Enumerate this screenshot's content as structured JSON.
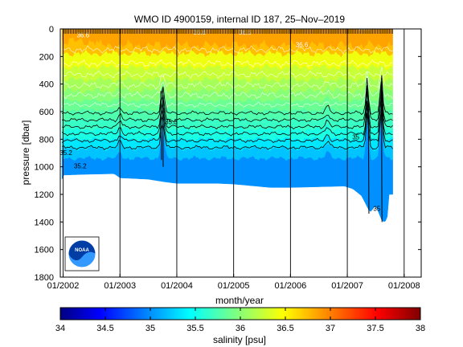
{
  "chart_data": {
    "type": "heatmap",
    "title": "WMO ID 4900159, internal ID 187, 25–Nov–2019",
    "xlabel": "month/year",
    "ylabel": "pressure [dbar]",
    "colorbar_label": "salinity [psu]",
    "xlim": [
      2001.95,
      2008.3
    ],
    "ylim": [
      0,
      1800
    ],
    "y_reversed": true,
    "x_ticks": [
      {
        "value": 2002,
        "label": "01/2002"
      },
      {
        "value": 2003,
        "label": "01/2003"
      },
      {
        "value": 2004,
        "label": "01/2004"
      },
      {
        "value": 2005,
        "label": "01/2005"
      },
      {
        "value": 2006,
        "label": "01/2006"
      },
      {
        "value": 2007,
        "label": "01/2007"
      },
      {
        "value": 2008,
        "label": "01/2008"
      }
    ],
    "y_ticks": [
      0,
      200,
      400,
      600,
      800,
      1000,
      1200,
      1400,
      1600,
      1800
    ],
    "grid": "vertical lines at each year",
    "colorbar": {
      "range": [
        34,
        38
      ],
      "ticks": [
        {
          "value": 34,
          "label": "34"
        },
        {
          "value": 34.5,
          "label": "34.5"
        },
        {
          "value": 35,
          "label": "35"
        },
        {
          "value": 35.5,
          "label": "35.5"
        },
        {
          "value": 36,
          "label": "36"
        },
        {
          "value": 36.5,
          "label": "36.5"
        },
        {
          "value": 37,
          "label": "37"
        },
        {
          "value": 37.5,
          "label": "37.5"
        },
        {
          "value": 38,
          "label": "38"
        }
      ],
      "colormap": "jet"
    },
    "salinity_bands": [
      {
        "p_top": 0,
        "p_bottom": 180,
        "salinity": 36.6,
        "color": "#ffc000"
      },
      {
        "p_top": 180,
        "p_bottom": 280,
        "salinity": 36.35,
        "color": "#f0ff0e"
      },
      {
        "p_top": 280,
        "p_bottom": 370,
        "salinity": 36.15,
        "color": "#c8ff37"
      },
      {
        "p_top": 370,
        "p_bottom": 450,
        "salinity": 36.0,
        "color": "#a6ff58"
      },
      {
        "p_top": 450,
        "p_bottom": 520,
        "salinity": 35.9,
        "color": "#88ff77"
      },
      {
        "p_top": 520,
        "p_bottom": 590,
        "salinity": 35.75,
        "color": "#6bff93"
      },
      {
        "p_top": 590,
        "p_bottom": 660,
        "salinity": 35.6,
        "color": "#50ffae"
      },
      {
        "p_top": 660,
        "p_bottom": 730,
        "salinity": 35.5,
        "color": "#38ffc6"
      },
      {
        "p_top": 730,
        "p_bottom": 800,
        "salinity": 35.4,
        "color": "#1affe4"
      },
      {
        "p_top": 800,
        "p_bottom": 870,
        "salinity": 35.3,
        "color": "#00e8ff"
      },
      {
        "p_top": 870,
        "p_bottom": 940,
        "salinity": 35.25,
        "color": "#00c4ff"
      },
      {
        "p_top": 940,
        "p_bottom": 1200,
        "salinity": 35.1,
        "color": "#0090ff"
      }
    ],
    "orange_top_band": {
      "p_top": 0,
      "p_bottom": 120,
      "salinity": 36.75,
      "color": "#ffa300"
    },
    "data_bottom_profile": [
      {
        "t": 2001.98,
        "p": 1090
      },
      {
        "t": 2002.0,
        "p": 1060
      },
      {
        "t": 2002.35,
        "p": 1055
      },
      {
        "t": 2002.9,
        "p": 1050
      },
      {
        "t": 2003.0,
        "p": 1080
      },
      {
        "t": 2003.5,
        "p": 1090
      },
      {
        "t": 2003.8,
        "p": 1110
      },
      {
        "t": 2004.0,
        "p": 1120
      },
      {
        "t": 2004.7,
        "p": 1120
      },
      {
        "t": 2005.0,
        "p": 1125
      },
      {
        "t": 2005.65,
        "p": 1150
      },
      {
        "t": 2006.0,
        "p": 1150
      },
      {
        "t": 2006.95,
        "p": 1140
      },
      {
        "t": 2007.1,
        "p": 1160
      },
      {
        "t": 2007.25,
        "p": 1210
      },
      {
        "t": 2007.4,
        "p": 1330
      },
      {
        "t": 2007.5,
        "p": 1280
      },
      {
        "t": 2007.62,
        "p": 1400
      },
      {
        "t": 2007.7,
        "p": 1390
      },
      {
        "t": 2007.72,
        "p": 1200
      }
    ],
    "data_start": 2001.98,
    "data_end": 2007.8,
    "contours": [
      {
        "level": 35.7,
        "base_p": 610
      },
      {
        "level": 35.6,
        "base_p": 660
      },
      {
        "level": 35.5,
        "base_p": 710
      },
      {
        "level": 35.4,
        "base_p": 760
      },
      {
        "level": 35.3,
        "base_p": 810
      },
      {
        "level": 35.2,
        "base_p": 860
      }
    ],
    "contour_labels": [
      {
        "text": "35.2",
        "t": 2002.05,
        "p": 915
      },
      {
        "text": "35.2",
        "t": 2002.3,
        "p": 1010
      },
      {
        "text": "35.3",
        "t": 2003.9,
        "p": 690
      },
      {
        "text": "35",
        "t": 2007.15,
        "p": 800
      },
      {
        "text": "35",
        "t": 2007.52,
        "p": 1320
      },
      {
        "text": "36.6",
        "t": 2002.35,
        "p": 60
      },
      {
        "text": "36.6",
        "t": 2004.4,
        "p": 40
      },
      {
        "text": "36.6",
        "t": 2005.2,
        "p": 40
      },
      {
        "text": "36.6",
        "t": 2006.2,
        "p": 130
      },
      {
        "text": "36.6",
        "t": 2007.3,
        "p": 10
      }
    ]
  },
  "logo": {
    "text": "NOAA"
  }
}
